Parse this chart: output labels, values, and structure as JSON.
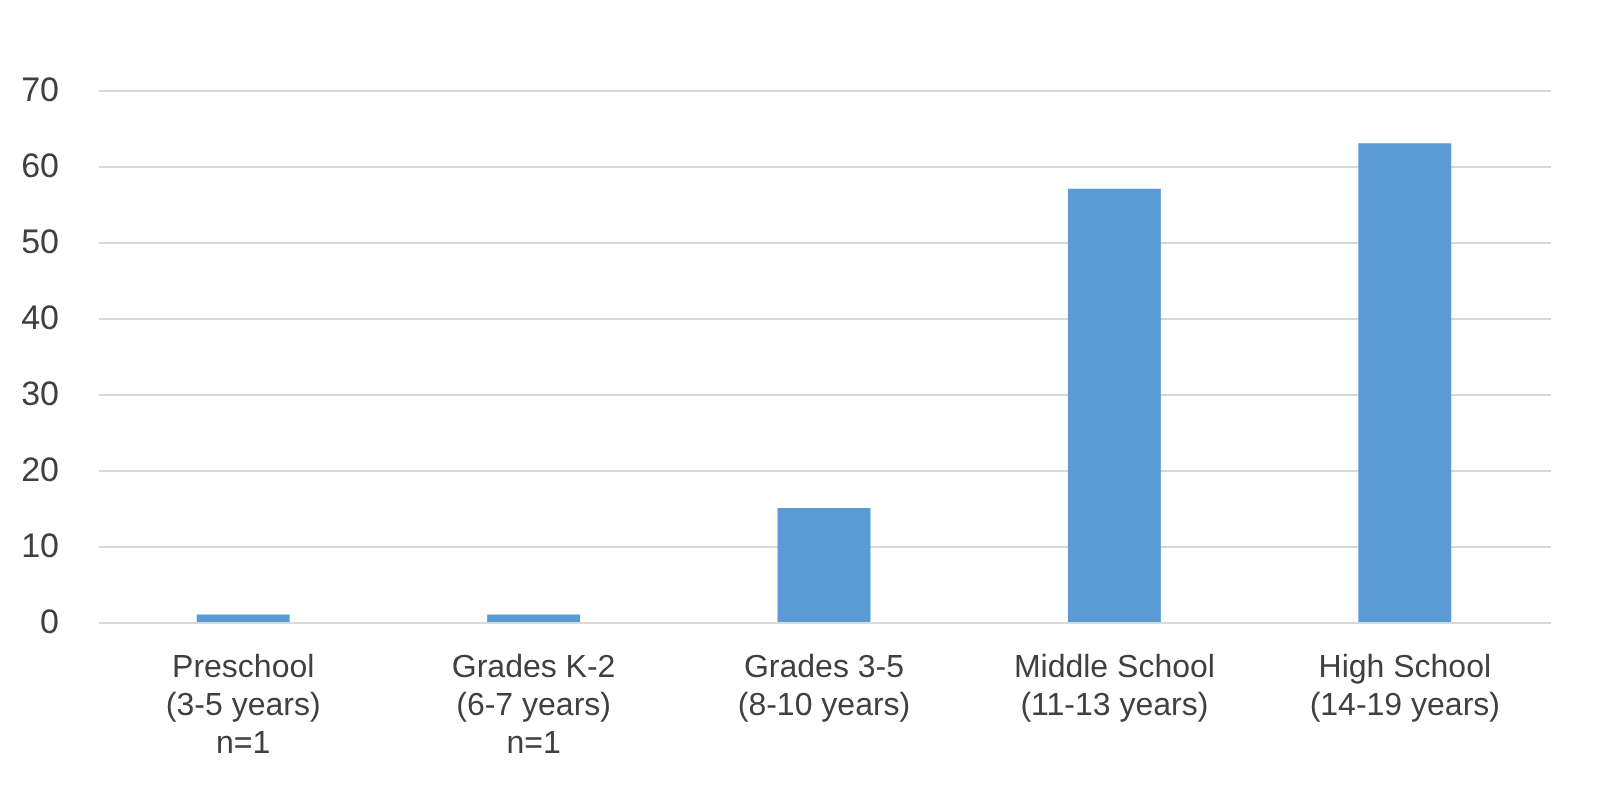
{
  "chart_data": {
    "type": "bar",
    "categories": [
      "Preschool\n(3-5 years)\nn=1",
      "Grades K-2\n(6-7 years)\nn=1",
      "Grades 3-5\n(8-10 years)",
      "Middle School\n(11-13 years)",
      "High School\n(14-19 years)"
    ],
    "values": [
      1,
      1,
      15,
      57,
      63
    ],
    "color": "#5b9bd5",
    "ylim": [
      0,
      70
    ],
    "yticks": [
      0,
      10,
      20,
      30,
      40,
      50,
      60,
      70
    ],
    "grid": "y"
  }
}
